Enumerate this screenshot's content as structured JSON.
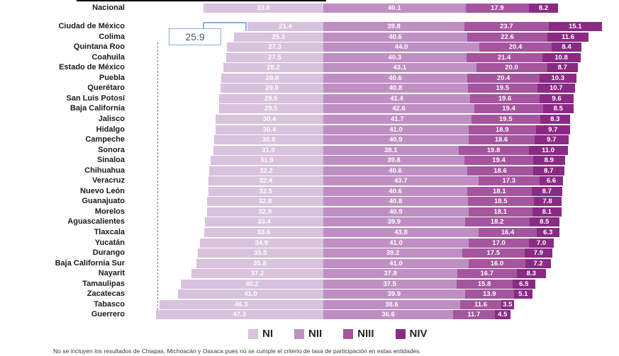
{
  "chart_data": {
    "type": "bar",
    "stacked": true,
    "orientation": "horizontal",
    "title": "",
    "legend_position": "bottom",
    "series_names": [
      "NI",
      "NII",
      "NIII",
      "NIV"
    ],
    "series_colors": [
      "#d8c2dd",
      "#bf8fc3",
      "#a4559e",
      "#8a2a84"
    ],
    "annotation": {
      "value": "25.9"
    },
    "rows": [
      {
        "label": "Nacional",
        "values": [
          33.8,
          40.1,
          17.9,
          8.2
        ]
      },
      {
        "label": "Ciudad de México",
        "values": [
          21.4,
          39.8,
          23.7,
          15.1
        ]
      },
      {
        "label": "Colima",
        "values": [
          25.3,
          40.6,
          22.6,
          11.6
        ]
      },
      {
        "label": "Quintana Roo",
        "values": [
          27.3,
          44.0,
          20.4,
          8.4
        ]
      },
      {
        "label": "Coahuila",
        "values": [
          27.5,
          40.3,
          21.4,
          10.8
        ]
      },
      {
        "label": "Estado de México",
        "values": [
          28.2,
          43.1,
          20.0,
          8.7
        ]
      },
      {
        "label": "Puebla",
        "values": [
          28.8,
          40.6,
          20.4,
          10.3
        ]
      },
      {
        "label": "Querétaro",
        "values": [
          29.0,
          40.8,
          19.5,
          10.7
        ]
      },
      {
        "label": "San Luis Potosí",
        "values": [
          29.5,
          41.4,
          19.6,
          9.6
        ]
      },
      {
        "label": "Baja California",
        "values": [
          29.5,
          42.6,
          19.4,
          8.5
        ]
      },
      {
        "label": "Jalisco",
        "values": [
          30.4,
          41.7,
          19.5,
          8.3
        ]
      },
      {
        "label": "Hidalgo",
        "values": [
          30.4,
          41.0,
          18.9,
          9.7
        ]
      },
      {
        "label": "Campeche",
        "values": [
          30.8,
          40.9,
          18.6,
          9.7
        ]
      },
      {
        "label": "Sonora",
        "values": [
          31.0,
          38.1,
          19.8,
          11.0
        ]
      },
      {
        "label": "Sinaloa",
        "values": [
          31.9,
          39.8,
          19.4,
          8.9
        ]
      },
      {
        "label": "Chihuahua",
        "values": [
          32.2,
          40.6,
          18.6,
          8.7
        ]
      },
      {
        "label": "Veracruz",
        "values": [
          32.4,
          43.7,
          17.3,
          6.6
        ]
      },
      {
        "label": "Nuevo León",
        "values": [
          32.5,
          40.6,
          18.1,
          8.7
        ]
      },
      {
        "label": "Guanajuato",
        "values": [
          32.8,
          40.8,
          18.5,
          7.8
        ]
      },
      {
        "label": "Morelos",
        "values": [
          32.9,
          40.9,
          18.1,
          8.1
        ]
      },
      {
        "label": "Aguascalientes",
        "values": [
          33.4,
          39.9,
          18.2,
          8.5
        ]
      },
      {
        "label": "Tlaxcala",
        "values": [
          33.6,
          43.8,
          16.4,
          6.3
        ]
      },
      {
        "label": "Yucatán",
        "values": [
          34.9,
          41.0,
          17.0,
          7.0
        ]
      },
      {
        "label": "Durango",
        "values": [
          35.5,
          39.2,
          17.5,
          7.9
        ]
      },
      {
        "label": "Baja California Sur",
        "values": [
          35.8,
          41.0,
          16.0,
          7.2
        ]
      },
      {
        "label": "Nayarit",
        "values": [
          37.2,
          37.8,
          16.7,
          8.3
        ]
      },
      {
        "label": "Tamaulipas",
        "values": [
          40.2,
          37.5,
          15.8,
          6.5
        ]
      },
      {
        "label": "Zacatecas",
        "values": [
          41.0,
          39.9,
          13.9,
          5.1
        ]
      },
      {
        "label": "Tabasco",
        "values": [
          46.3,
          38.6,
          11.6,
          3.5
        ]
      },
      {
        "label": "Guerrero",
        "values": [
          47.3,
          36.6,
          11.7,
          4.5
        ]
      }
    ],
    "footnote": "No se incluyen los resultados de Chiapas, Michoacán y Oaxaca pues no se cumple el criterio de tasa de participación en estas entidades."
  }
}
